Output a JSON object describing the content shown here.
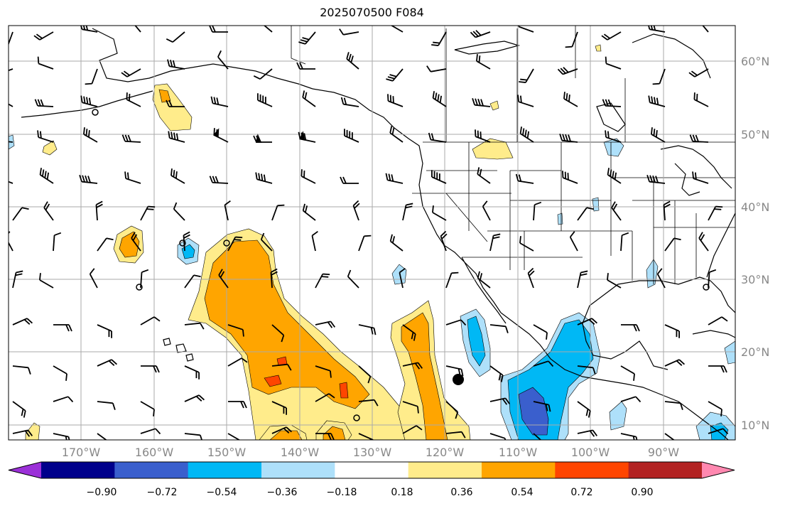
{
  "title": "2025070500 F084",
  "lon_labels": [
    "170°W",
    "160°W",
    "150°W",
    "140°W",
    "130°W",
    "120°W",
    "110°W",
    "100°W",
    "90°W"
  ],
  "lat_labels": [
    "60°N",
    "50°N",
    "40°N",
    "30°N",
    "20°N",
    "10°N"
  ],
  "colorbar": {
    "ticks": [
      "−0.90",
      "−0.72",
      "−0.54",
      "−0.36",
      "−0.18",
      "0.18",
      "0.36",
      "0.54",
      "0.72",
      "0.90"
    ],
    "colors": [
      "#9b30d8",
      "#00008b",
      "#3a5fcd",
      "#00b8f5",
      "#aee0fa",
      "#ffffff",
      "#ffec8b",
      "#ffa500",
      "#ff4500",
      "#b22222",
      "#ff88b0"
    ]
  },
  "map_colors": {
    "light_yellow": "#ffec8b",
    "orange": "#ffa500",
    "red_orange": "#ff4500",
    "light_blue": "#aee0fa",
    "blue": "#00b8f5",
    "dark_blue": "#3a5fcd"
  },
  "marker": "storm-center-dot"
}
